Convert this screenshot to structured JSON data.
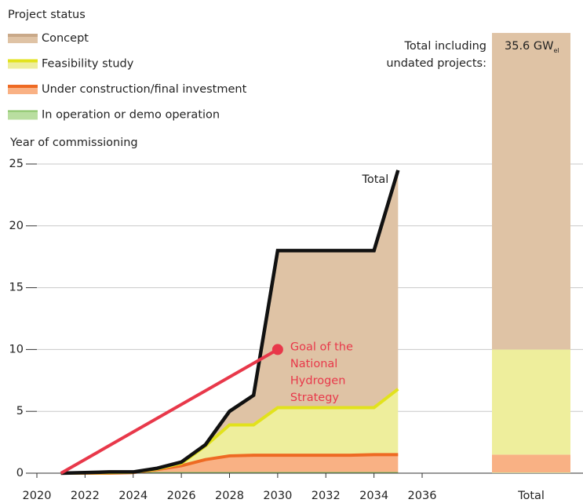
{
  "chart_data": {
    "type": "stacked_area",
    "legend_title": "Project status",
    "y_label": "Year of commissioning",
    "x": [
      2021,
      2022,
      2023,
      2024,
      2025,
      2026,
      2027,
      2028,
      2029,
      2030,
      2031,
      2032,
      2033,
      2034,
      2035
    ],
    "series": [
      {
        "name": "In operation or demo operation",
        "color": "#b9dea0",
        "line_color": "#8cc56a",
        "values": [
          0,
          0,
          0,
          0.02,
          0.05,
          0.05,
          0.05,
          0.05,
          0.05,
          0.05,
          0.05,
          0.05,
          0.05,
          0.05,
          0.05
        ]
      },
      {
        "name": "Under construction/final investment",
        "color": "#f9b184",
        "line_color": "#ee6a23",
        "values": [
          0,
          0,
          0,
          0.03,
          0.25,
          0.55,
          1.05,
          1.35,
          1.4,
          1.4,
          1.4,
          1.4,
          1.4,
          1.45,
          1.45
        ]
      },
      {
        "name": "Feasibility study",
        "color": "#eeee9c",
        "line_color": "#e2e21c",
        "values": [
          0,
          0.02,
          0.05,
          0.03,
          0.05,
          0.2,
          1.1,
          2.5,
          2.45,
          3.85,
          3.85,
          3.85,
          3.85,
          3.8,
          5.3
        ]
      },
      {
        "name": "Concept",
        "color": "#dfc3a5",
        "line_color": "#c9a989",
        "values": [
          0,
          0.03,
          0.05,
          0.02,
          0.05,
          0.1,
          0.1,
          1.1,
          2.4,
          12.7,
          12.7,
          12.7,
          12.7,
          12.7,
          17.7
        ]
      }
    ],
    "total_line": {
      "name": "Total",
      "color": "#111111",
      "values": [
        0,
        0.05,
        0.1,
        0.1,
        0.4,
        0.9,
        2.3,
        5.0,
        6.3,
        18,
        18,
        18,
        18,
        18,
        24.5
      ]
    },
    "goal": {
      "x": [
        2021,
        2030
      ],
      "values": [
        0,
        10
      ],
      "color": "#e8384a",
      "label": [
        "Goal of the",
        "National",
        "Hydrogen",
        "Strategy"
      ]
    },
    "total_bar": {
      "category": "Total",
      "values": [
        0.05,
        1.45,
        8.5,
        25.6
      ],
      "total": 35.6,
      "total_label": "35.6 GW",
      "total_label_sub": "el",
      "annotation": [
        "Total including",
        "undated projects:"
      ]
    },
    "xlim": [
      2020,
      2036
    ],
    "xticks": [
      2020,
      2022,
      2024,
      2026,
      2028,
      2030,
      2032,
      2034,
      2036
    ],
    "ylim": [
      0,
      25
    ],
    "yticks": [
      0,
      5,
      10,
      15,
      20,
      25
    ],
    "grid": true
  }
}
